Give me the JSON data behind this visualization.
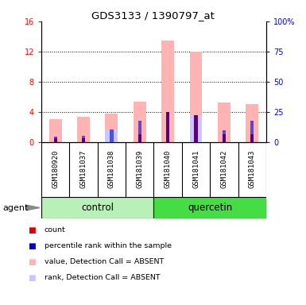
{
  "title": "GDS3133 / 1390797_at",
  "samples": [
    "GSM180920",
    "GSM181037",
    "GSM181038",
    "GSM181039",
    "GSM181040",
    "GSM181041",
    "GSM181042",
    "GSM181043"
  ],
  "count_values": [
    0.5,
    0.5,
    0.0,
    1.0,
    4.0,
    3.5,
    1.0,
    1.0
  ],
  "rank_values": [
    0.7,
    0.8,
    1.6,
    2.8,
    4.0,
    3.5,
    1.5,
    2.8
  ],
  "absent_value_values": [
    3.0,
    3.3,
    3.8,
    5.3,
    13.5,
    12.0,
    5.2,
    5.0
  ],
  "absent_rank_values": [
    0.0,
    0.0,
    1.6,
    0.0,
    0.0,
    3.5,
    0.0,
    0.0
  ],
  "ylim_left": [
    0,
    16
  ],
  "ylim_right": [
    0,
    100
  ],
  "yticks_left": [
    0,
    4,
    8,
    12,
    16
  ],
  "yticks_right": [
    0,
    25,
    50,
    75,
    100
  ],
  "ytick_labels_right": [
    "0",
    "25",
    "50",
    "75",
    "100%"
  ],
  "count_color": "#e00000",
  "rank_color": "#0000cc",
  "absent_value_color": "#ffb3b3",
  "absent_rank_color": "#c8c8ff",
  "control_bg": "#b8f0b8",
  "quercetin_bg": "#44dd44",
  "sample_bg": "#cccccc",
  "legend_items": [
    {
      "label": "count",
      "color": "#e00000"
    },
    {
      "label": "percentile rank within the sample",
      "color": "#0000cc"
    },
    {
      "label": "value, Detection Call = ABSENT",
      "color": "#ffb3b3"
    },
    {
      "label": "rank, Detection Call = ABSENT",
      "color": "#c8c8ff"
    }
  ],
  "agent_label": "agent"
}
